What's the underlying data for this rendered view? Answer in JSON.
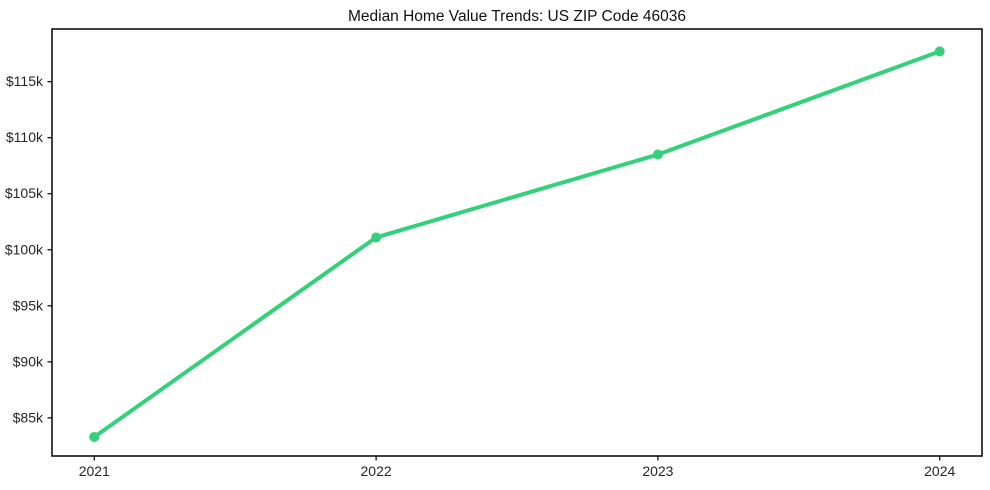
{
  "chart_data": {
    "type": "line",
    "title": "Median Home Value Trends: US ZIP Code 46036",
    "x": [
      2021,
      2022,
      2023,
      2024
    ],
    "xtick_labels": [
      "2021",
      "2022",
      "2023",
      "2024"
    ],
    "series": [
      {
        "name": "Median Home Value",
        "values": [
          83300,
          101100,
          108500,
          117700
        ]
      }
    ],
    "ytick_values": [
      85000,
      90000,
      95000,
      100000,
      105000,
      110000,
      115000
    ],
    "ytick_labels": [
      "$85k",
      "$90k",
      "$95k",
      "$100k",
      "$105k",
      "$110k",
      "$115k"
    ],
    "xlim": [
      2020.85,
      2024.15
    ],
    "ylim": [
      81600,
      119700
    ],
    "xlabel": "",
    "ylabel": "",
    "grid": false,
    "legend_position": "none",
    "line_color": "#35d07a",
    "marker": "circle",
    "background_color": "#ffffff",
    "spine_color": "#000000",
    "tick_color": "#000000",
    "title_color": "#111111",
    "tick_label_color": "#262626"
  }
}
